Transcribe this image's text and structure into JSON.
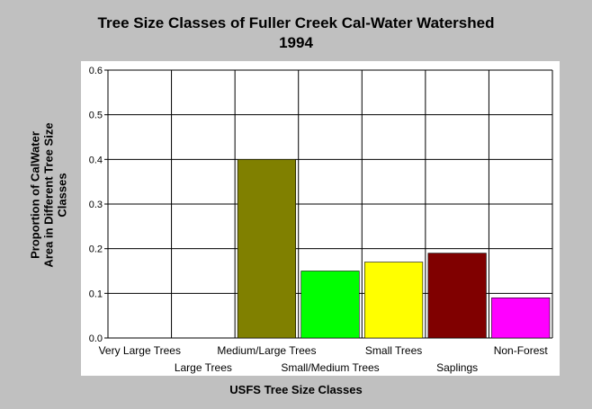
{
  "chart_data": {
    "type": "bar",
    "title": "Tree Size Classes of Fuller Creek Cal-Water Watershed",
    "subtitle": "1994",
    "xlabel": "USFS Tree Size Classes",
    "ylabel_lines": [
      "Proportion of CalWater",
      "Area in Different Tree Size",
      "Classes"
    ],
    "categories": [
      "Very Large Trees",
      "Large Trees",
      "Medium/Large Trees",
      "Small/Medium Trees",
      "Small Trees",
      "Saplings",
      "Non-Forest"
    ],
    "values": [
      0,
      0,
      0.4,
      0.15,
      0.17,
      0.19,
      0.09
    ],
    "colors": [
      "#808080",
      "#808080",
      "#808000",
      "#00ff00",
      "#ffff00",
      "#800000",
      "#ff00ff"
    ],
    "ylim": [
      0,
      0.6
    ],
    "yticks": [
      "0.0",
      "0.1",
      "0.2",
      "0.3",
      "0.4",
      "0.5",
      "0.6"
    ],
    "grid": true,
    "legend": "none"
  }
}
